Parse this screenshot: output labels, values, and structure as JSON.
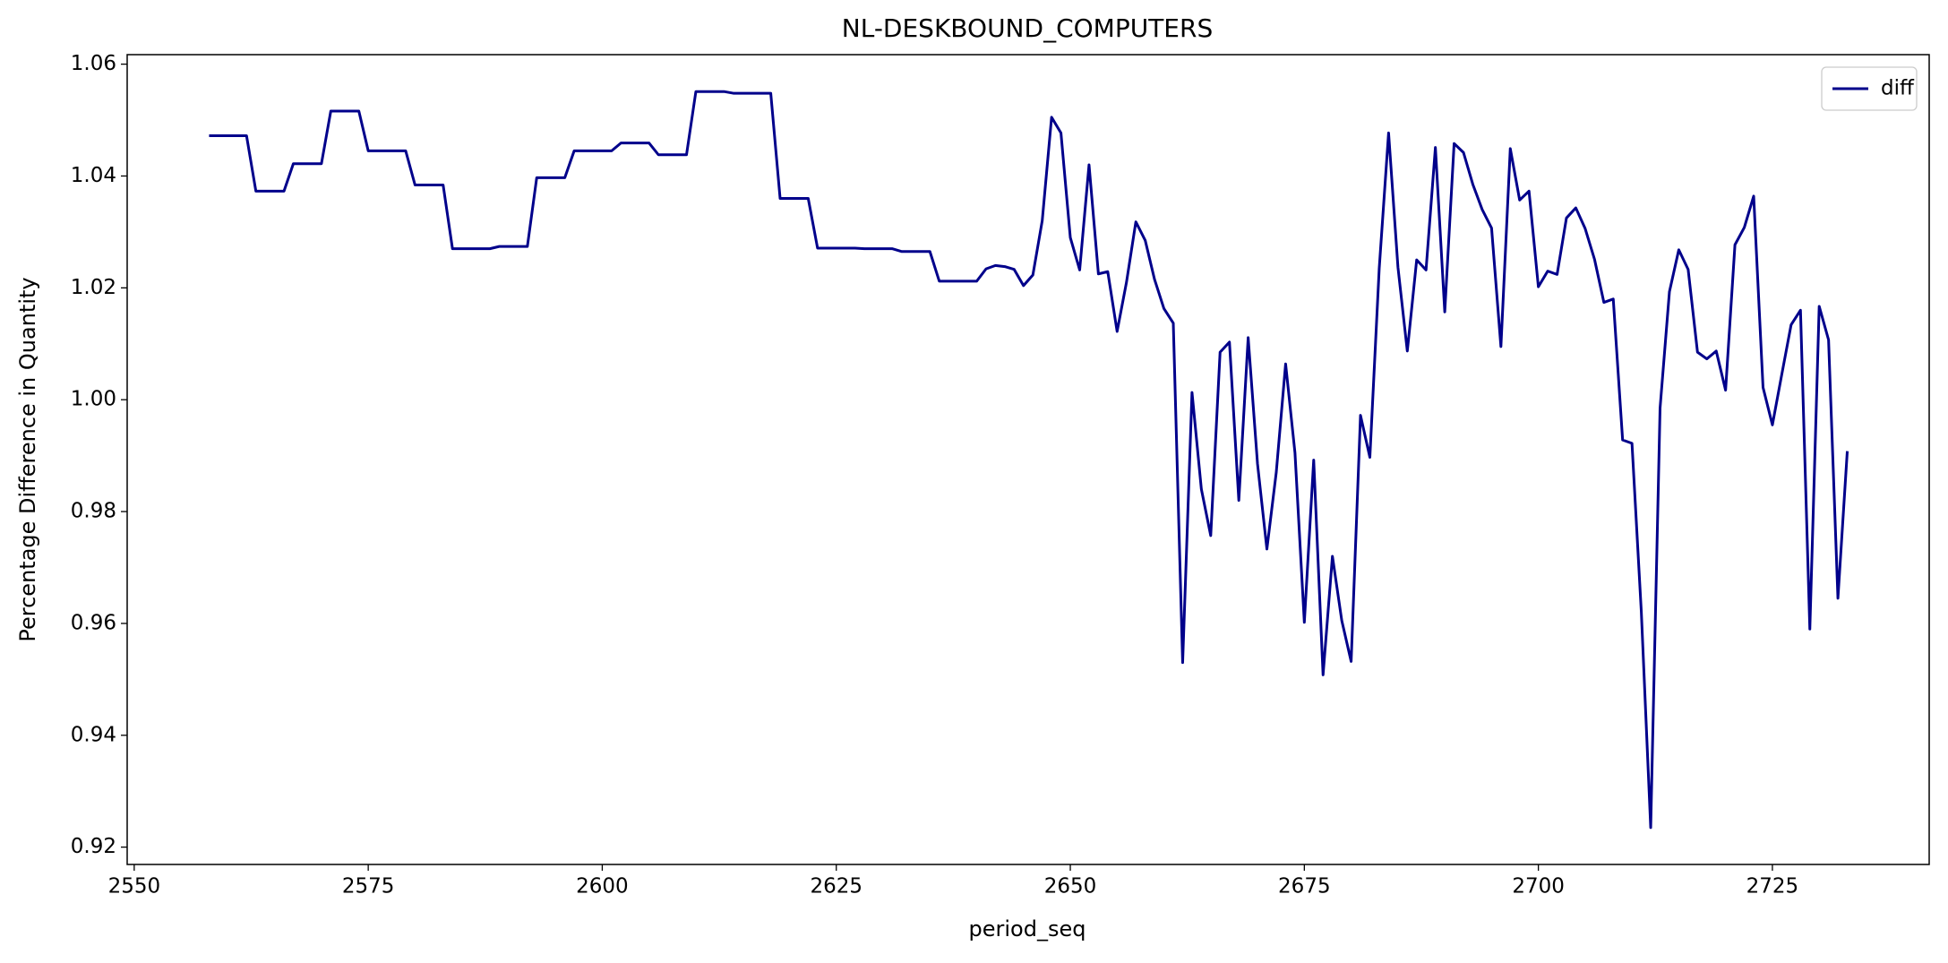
{
  "chart_data": {
    "type": "line",
    "title": "NL-DESKBOUND_COMPUTERS",
    "x_label": "period_seq",
    "y_label": "Percentage Difference in Quantity",
    "legend": "upper right",
    "grid": false,
    "x": [
      2558,
      2559,
      2560,
      2561,
      2562,
      2563,
      2564,
      2565,
      2566,
      2567,
      2568,
      2569,
      2570,
      2571,
      2572,
      2573,
      2574,
      2575,
      2576,
      2577,
      2578,
      2579,
      2580,
      2581,
      2582,
      2583,
      2584,
      2585,
      2586,
      2587,
      2588,
      2589,
      2590,
      2591,
      2592,
      2593,
      2594,
      2595,
      2596,
      2597,
      2598,
      2599,
      2600,
      2601,
      2602,
      2603,
      2604,
      2605,
      2606,
      2607,
      2608,
      2609,
      2610,
      2611,
      2612,
      2613,
      2614,
      2615,
      2616,
      2617,
      2618,
      2619,
      2620,
      2621,
      2622,
      2623,
      2624,
      2625,
      2626,
      2627,
      2628,
      2629,
      2630,
      2631,
      2632,
      2633,
      2634,
      2635,
      2636,
      2637,
      2638,
      2639,
      2640,
      2641,
      2642,
      2643,
      2644,
      2645,
      2646,
      2647,
      2648,
      2649,
      2650,
      2651,
      2652,
      2653,
      2654,
      2655,
      2656,
      2657,
      2658,
      2659,
      2660,
      2661,
      2662,
      2663,
      2664,
      2665,
      2666,
      2667,
      2668,
      2669,
      2670,
      2671,
      2672,
      2673,
      2674,
      2675,
      2676,
      2677,
      2678,
      2679,
      2680,
      2681,
      2682,
      2683,
      2684,
      2685,
      2686,
      2687,
      2688,
      2689,
      2690,
      2691,
      2692,
      2693,
      2694,
      2695,
      2696,
      2697,
      2698,
      2699,
      2700,
      2701,
      2702,
      2703,
      2704,
      2705,
      2706,
      2707,
      2708,
      2709,
      2710,
      2711,
      2712,
      2713,
      2714,
      2715,
      2716,
      2717,
      2718,
      2719,
      2720,
      2721,
      2722,
      2723,
      2724,
      2725,
      2726,
      2727,
      2728,
      2729,
      2730,
      2731,
      2732,
      2733
    ],
    "series": [
      {
        "name": "diff",
        "color": "#00008b",
        "values": [
          1.0472,
          1.0472,
          1.0472,
          1.0472,
          1.0472,
          1.0373,
          1.0373,
          1.0373,
          1.0373,
          1.0422,
          1.0422,
          1.0422,
          1.0422,
          1.0516,
          1.0516,
          1.0516,
          1.0516,
          1.0445,
          1.0445,
          1.0445,
          1.0445,
          1.0445,
          1.0384,
          1.0384,
          1.0384,
          1.0384,
          1.027,
          1.027,
          1.027,
          1.027,
          1.027,
          1.0274,
          1.0274,
          1.0274,
          1.0274,
          1.0397,
          1.0397,
          1.0397,
          1.0397,
          1.0445,
          1.0445,
          1.0445,
          1.0445,
          1.0445,
          1.0459,
          1.0459,
          1.0459,
          1.0459,
          1.0438,
          1.0438,
          1.0438,
          1.0438,
          1.0551,
          1.0551,
          1.0551,
          1.0551,
          1.0548,
          1.0548,
          1.0548,
          1.0548,
          1.0548,
          1.036,
          1.036,
          1.036,
          1.036,
          1.0271,
          1.0271,
          1.0271,
          1.0271,
          1.0271,
          1.027,
          1.027,
          1.027,
          1.027,
          1.0265,
          1.0265,
          1.0265,
          1.0265,
          1.0212,
          1.0212,
          1.0212,
          1.0212,
          1.0212,
          1.0234,
          1.024,
          1.0238,
          1.0233,
          1.0204,
          1.0223,
          1.032,
          1.0505,
          1.0477,
          1.029,
          1.0232,
          1.042,
          1.0225,
          1.0229,
          1.0122,
          1.021,
          1.0318,
          1.0285,
          1.0215,
          1.0163,
          1.0137,
          0.953,
          1.0013,
          0.984,
          0.9757,
          1.0085,
          1.0103,
          0.982,
          1.0111,
          0.9885,
          0.9733,
          0.987,
          1.0064,
          0.9905,
          0.9602,
          0.9892,
          0.9508,
          0.972,
          0.9605,
          0.9532,
          0.9972,
          0.9897,
          1.0235,
          1.0477,
          1.0237,
          1.0087,
          1.025,
          1.0232,
          1.0451,
          1.0157,
          1.0458,
          1.0442,
          1.0385,
          1.034,
          1.0307,
          1.0095,
          1.0449,
          1.0357,
          1.0373,
          1.0202,
          1.023,
          1.0224,
          1.0325,
          1.0343,
          1.0306,
          1.0251,
          1.0174,
          1.018,
          0.9928,
          0.9922,
          0.962,
          0.9235,
          0.9985,
          1.0193,
          1.0268,
          1.0233,
          1.0085,
          1.0073,
          1.0087,
          1.0017,
          1.0277,
          1.0308,
          1.0364,
          1.0022,
          0.9955,
          1.0045,
          1.0134,
          1.016,
          0.959,
          1.0167,
          1.0107,
          0.9645,
          0.9908
        ]
      }
    ],
    "xlim": [
      2549.25,
      2741.75
    ],
    "xticks": [
      2550,
      2575,
      2600,
      2625,
      2650,
      2675,
      2700,
      2725
    ],
    "ylim": [
      0.9169,
      1.0617
    ],
    "yticks": [
      0.92,
      0.94,
      0.96,
      0.98,
      {
        "value": 1,
        "label": "1.00"
      },
      1.02,
      1.04,
      1.06
    ]
  }
}
